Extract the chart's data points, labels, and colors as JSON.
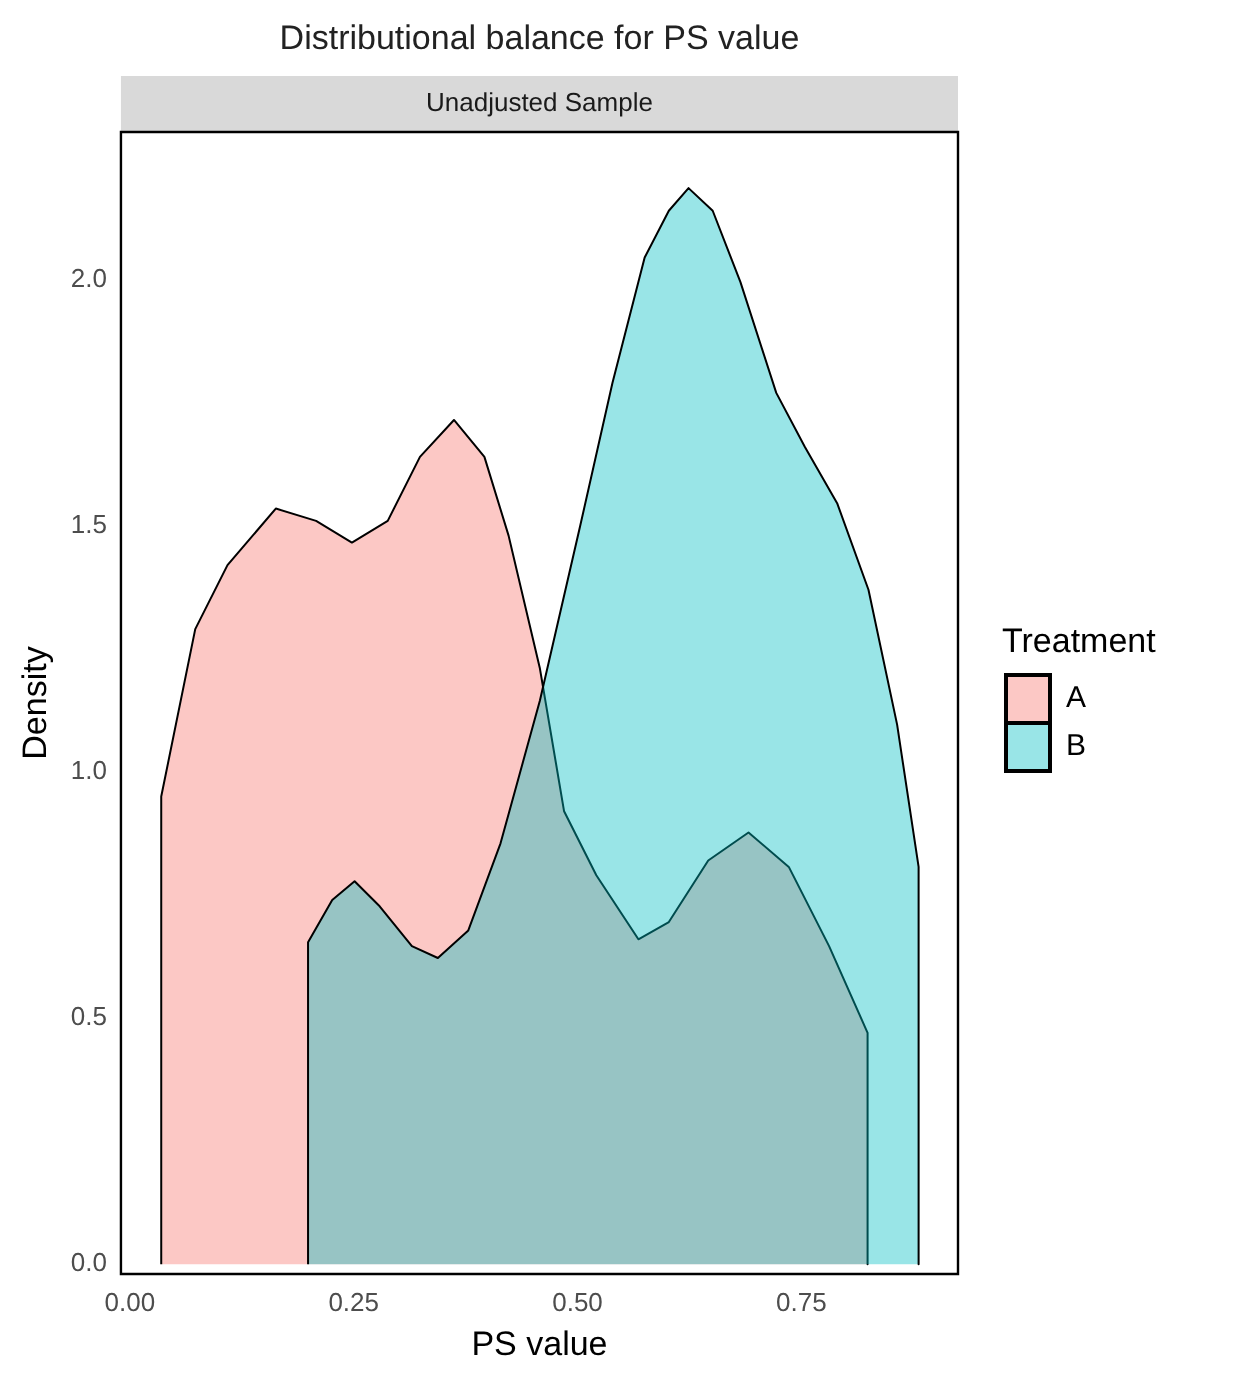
{
  "chart_data": {
    "type": "area",
    "title": "Distributional balance for PS value",
    "subtitle": "Unadjusted Sample",
    "xlabel": "PS value",
    "ylabel": "Density",
    "legend_title": "Treatment",
    "legend": "right",
    "grid": false,
    "marker": "none",
    "xlim": [
      -0.01,
      0.925
    ],
    "xticks": [
      {
        "value": 0,
        "label": "0.00"
      },
      0.25,
      {
        "value": 0.5,
        "label": "0.50"
      },
      0.75
    ],
    "ylim": [
      -0.02,
      2.3
    ],
    "yticks": [
      {
        "value": 0,
        "label": "0.0"
      },
      0.5,
      {
        "value": 1,
        "label": "1.0"
      },
      1.5,
      {
        "value": 2,
        "label": "2.0"
      }
    ],
    "series": [
      {
        "name": "A",
        "color": "#f8766d",
        "x": [
          0.035,
          0.035,
          0.073,
          0.109,
          0.163,
          0.208,
          0.248,
          0.288,
          0.324,
          0.362,
          0.396,
          0.423,
          0.458,
          0.485,
          0.521,
          0.568,
          0.602,
          0.646,
          0.691,
          0.736,
          0.781,
          0.824,
          0.824
        ],
        "values": [
          0,
          0.95,
          1.29,
          1.42,
          1.535,
          1.51,
          1.466,
          1.51,
          1.64,
          1.715,
          1.64,
          1.48,
          1.21,
          0.92,
          0.79,
          0.66,
          0.695,
          0.82,
          0.877,
          0.807,
          0.646,
          0.47,
          0
        ]
      },
      {
        "name": "B",
        "color": "#00bfc4",
        "x": [
          0.199,
          0.199,
          0.226,
          0.251,
          0.279,
          0.315,
          0.344,
          0.378,
          0.414,
          0.458,
          0.503,
          0.539,
          0.575,
          0.602,
          0.624,
          0.651,
          0.682,
          0.722,
          0.754,
          0.79,
          0.825,
          0.857,
          0.881,
          0.881
        ],
        "values": [
          0,
          0.654,
          0.74,
          0.778,
          0.727,
          0.646,
          0.622,
          0.678,
          0.855,
          1.145,
          1.5,
          1.79,
          2.045,
          2.14,
          2.186,
          2.14,
          1.995,
          1.77,
          1.66,
          1.546,
          1.37,
          1.096,
          0.807,
          0
        ]
      }
    ]
  }
}
